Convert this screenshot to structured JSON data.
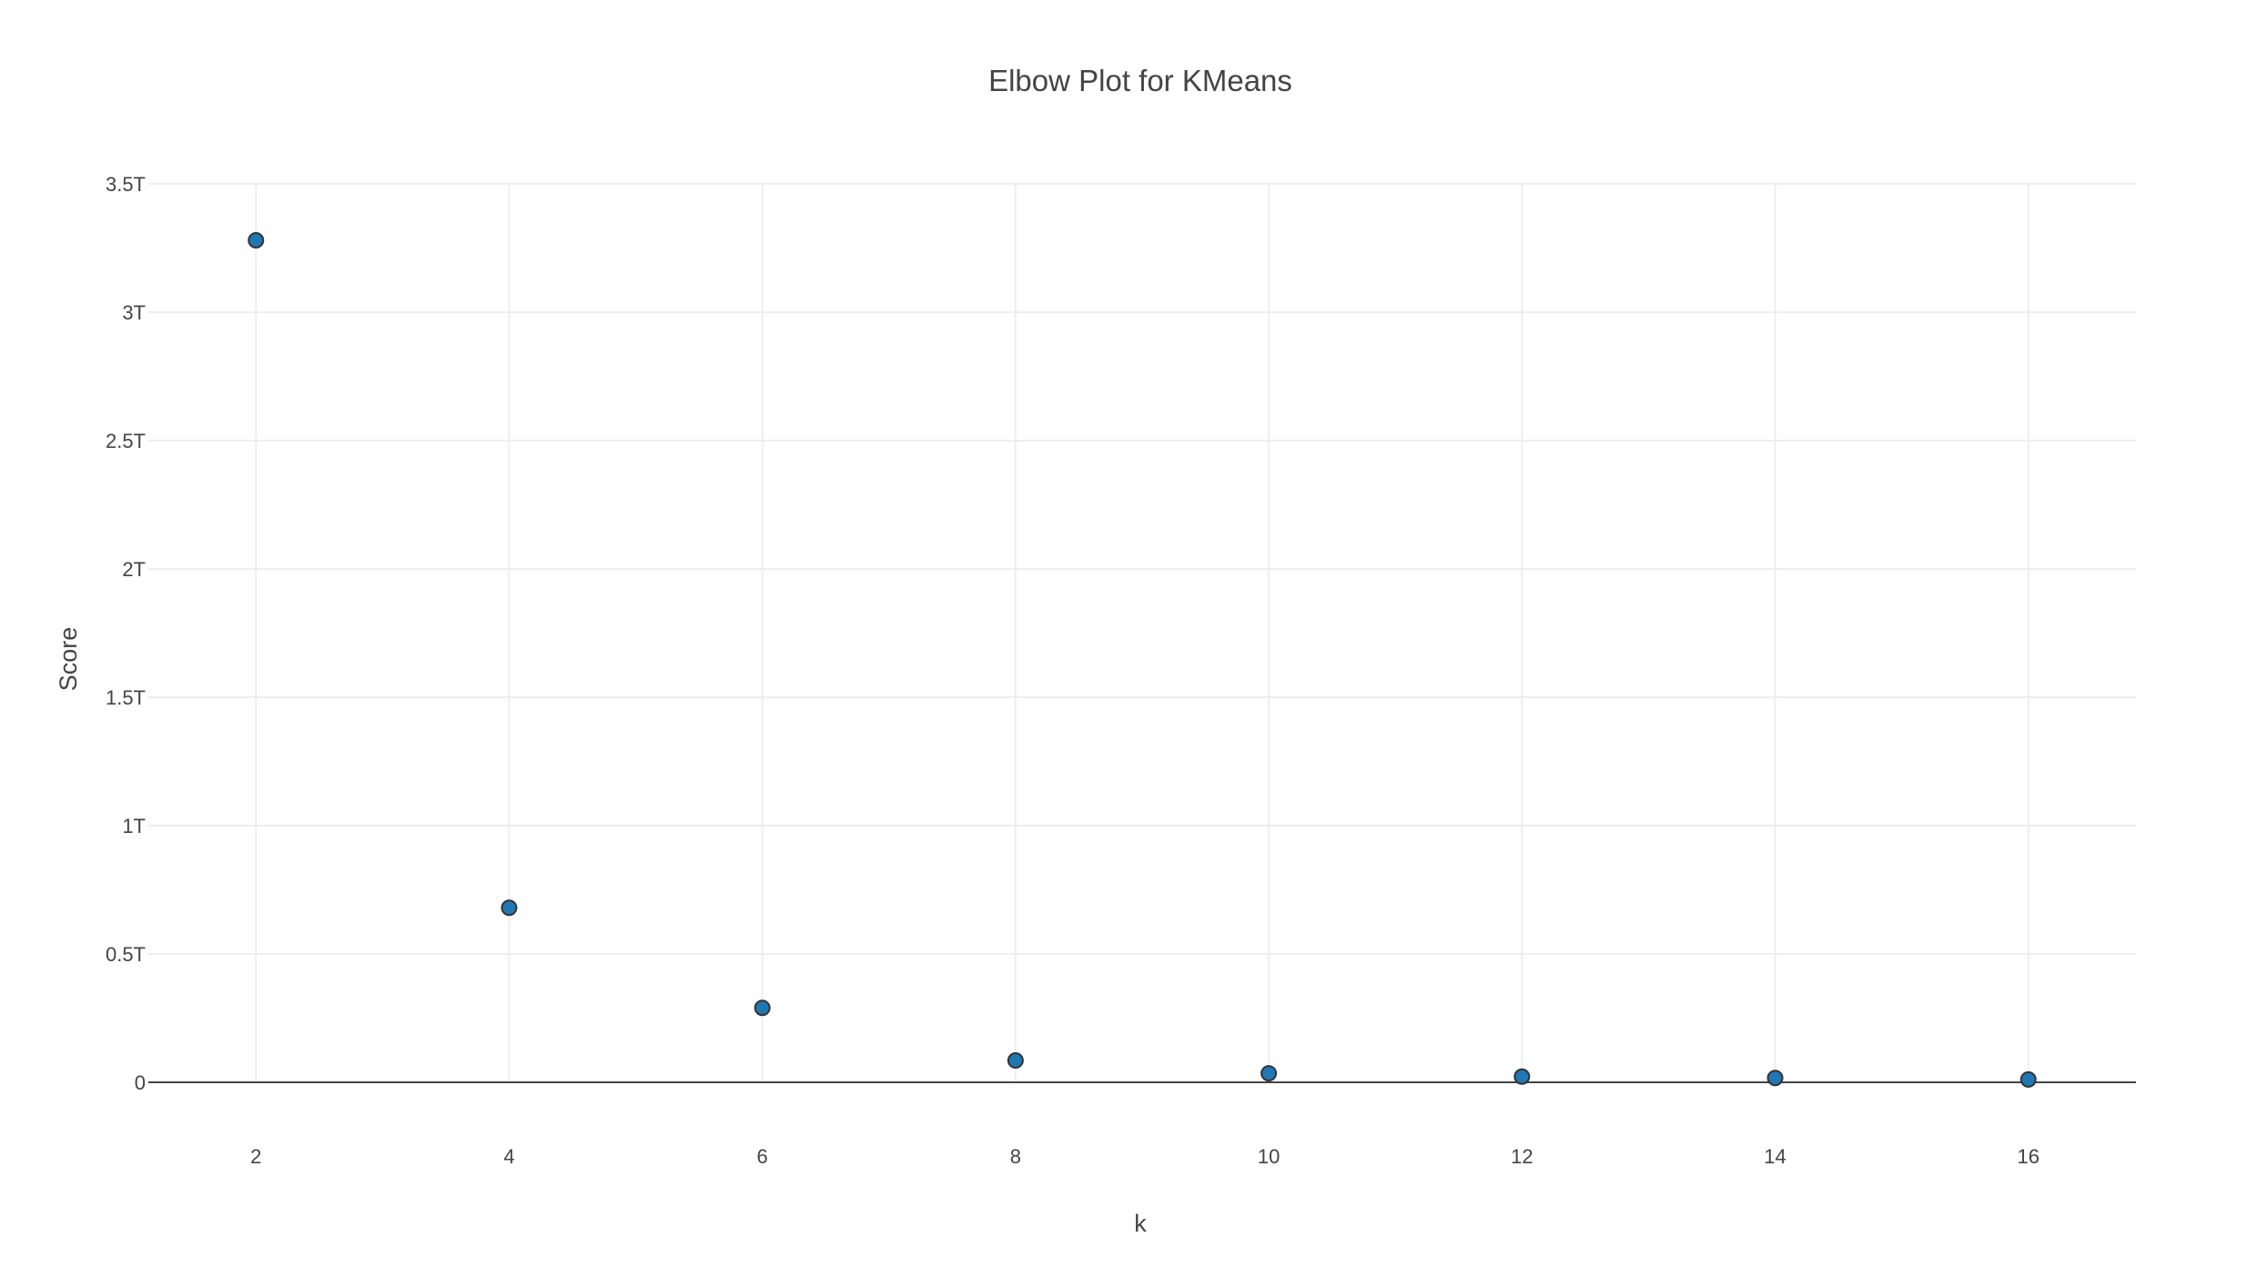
{
  "chart_data": {
    "type": "scatter",
    "title": "Elbow Plot for KMeans",
    "xlabel": "k",
    "ylabel": "Score",
    "x": [
      2,
      4,
      6,
      8,
      10,
      12,
      14,
      16
    ],
    "y": [
      3280000000000.0,
      680000000000.0,
      290000000000.0,
      85000000000.0,
      35000000000.0,
      22000000000.0,
      17000000000.0,
      11000000000.0
    ],
    "xlim": [
      1.15,
      16.85
    ],
    "ylim": [
      0,
      3500000000000.0
    ],
    "xticks": [
      2,
      4,
      6,
      8,
      10,
      12,
      14,
      16
    ],
    "xtick_labels": [
      "2",
      "4",
      "6",
      "8",
      "10",
      "12",
      "14",
      "16"
    ],
    "yticks": [
      0,
      500000000000.0,
      1000000000000.0,
      1500000000000.0,
      2000000000000.0,
      2500000000000.0,
      3000000000000.0,
      3500000000000.0
    ],
    "ytick_labels": [
      "0",
      "0.5T",
      "1T",
      "1.5T",
      "2T",
      "2.5T",
      "3T",
      "3.5T"
    ],
    "grid": true,
    "legend": "none",
    "marker_color": "#1f77b4"
  }
}
